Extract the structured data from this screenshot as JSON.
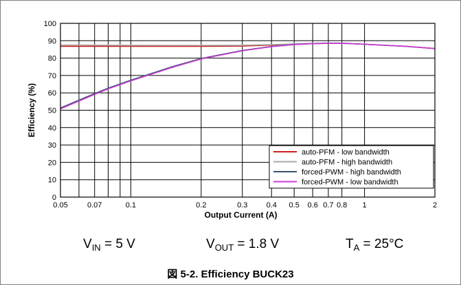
{
  "chart_data": {
    "type": "line",
    "xlabel": "Output Current (A)",
    "ylabel": "Efficiency (%)",
    "xscale": "log",
    "xlim": [
      0.05,
      2
    ],
    "ylim": [
      0,
      100
    ],
    "grid": true,
    "legend_position": "bottom-right",
    "x_ticks": [
      {
        "value": 0.05,
        "label": "0.05"
      },
      {
        "value": 0.07,
        "label": "0.07"
      },
      {
        "value": 0.1,
        "label": "0.1"
      },
      {
        "value": 0.2,
        "label": "0.2"
      },
      {
        "value": 0.3,
        "label": "0.3"
      },
      {
        "value": 0.4,
        "label": "0.4"
      },
      {
        "value": 0.5,
        "label": "0.5"
      },
      {
        "value": 0.6,
        "label": "0.6"
      },
      {
        "value": 0.7,
        "label": "0.7"
      },
      {
        "value": 0.8,
        "label": "0.8"
      },
      {
        "value": 1,
        "label": "1"
      },
      {
        "value": 2,
        "label": "2"
      }
    ],
    "x_minor_grid": [
      0.06,
      0.08,
      0.09
    ],
    "y_ticks": [
      0,
      10,
      20,
      30,
      40,
      50,
      60,
      70,
      80,
      90,
      100
    ],
    "series": [
      {
        "name": "auto-PFM - low bandwidth",
        "color": "#d11a1a",
        "points": [
          [
            0.05,
            86.8
          ],
          [
            0.1,
            86.8
          ],
          [
            0.2,
            86.8
          ],
          [
            0.3,
            86.9
          ],
          [
            0.4,
            87.5
          ],
          [
            0.5,
            88.0
          ],
          [
            0.6,
            88.3
          ],
          [
            0.7,
            88.5
          ],
          [
            0.8,
            88.5
          ],
          [
            1,
            88.0
          ],
          [
            1.5,
            86.8
          ],
          [
            2,
            85.5
          ]
        ]
      },
      {
        "name": "auto-PFM - high bandwidth",
        "color": "#a8a8a8",
        "points": [
          [
            0.05,
            87.5
          ],
          [
            0.1,
            87.4
          ],
          [
            0.2,
            87.3
          ],
          [
            0.3,
            87.4
          ],
          [
            0.4,
            87.8
          ],
          [
            0.5,
            88.1
          ],
          [
            0.6,
            88.4
          ],
          [
            0.7,
            88.5
          ],
          [
            0.8,
            88.5
          ],
          [
            1,
            88.0
          ],
          [
            1.5,
            86.8
          ],
          [
            2,
            85.5
          ]
        ]
      },
      {
        "name": "forced-PWM - high bandwidth",
        "color": "#3a4f6e",
        "points": [
          [
            0.05,
            51.3
          ],
          [
            0.06,
            55.8
          ],
          [
            0.07,
            59.6
          ],
          [
            0.08,
            62.7
          ],
          [
            0.1,
            67.3
          ],
          [
            0.15,
            75.0
          ],
          [
            0.2,
            79.8
          ],
          [
            0.3,
            84.4
          ],
          [
            0.4,
            86.7
          ],
          [
            0.5,
            87.9
          ],
          [
            0.6,
            88.4
          ],
          [
            0.7,
            88.6
          ],
          [
            0.8,
            88.6
          ],
          [
            1,
            88.0
          ],
          [
            1.5,
            86.8
          ],
          [
            2,
            85.5
          ]
        ]
      },
      {
        "name": "forced-PWM - low bandwidth",
        "color": "#c93bd4",
        "points": [
          [
            0.05,
            50.8
          ],
          [
            0.06,
            55.3
          ],
          [
            0.07,
            59.1
          ],
          [
            0.08,
            62.3
          ],
          [
            0.1,
            66.9
          ],
          [
            0.15,
            74.6
          ],
          [
            0.2,
            79.5
          ],
          [
            0.3,
            84.2
          ],
          [
            0.4,
            86.6
          ],
          [
            0.5,
            87.8
          ],
          [
            0.6,
            88.3
          ],
          [
            0.7,
            88.5
          ],
          [
            0.8,
            88.5
          ],
          [
            1,
            88.0
          ],
          [
            1.5,
            86.8
          ],
          [
            2,
            85.5
          ]
        ]
      }
    ]
  },
  "conditions": {
    "vin_prefix": "V",
    "vin_sub": "IN",
    "vin_rest": " = 5 V",
    "vout_prefix": "V",
    "vout_sub": "OUT",
    "vout_rest": " = 1.8 V",
    "ta_prefix": "T",
    "ta_sub": "A",
    "ta_rest": " = 25°C"
  },
  "caption": "図 5-2. Efficiency BUCK23"
}
